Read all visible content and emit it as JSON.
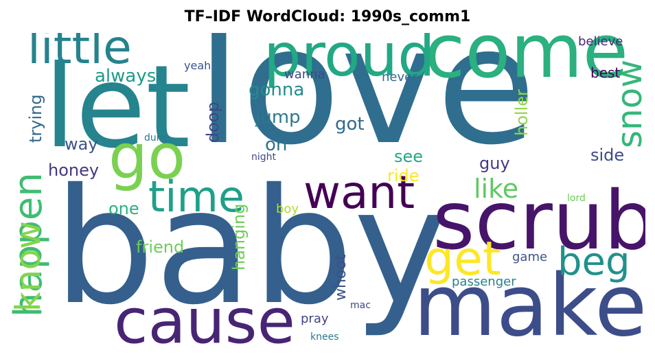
{
  "title": "TF–IDF WordCloud: 1990s_comm1",
  "words": [
    {
      "text": "love",
      "color": "#2f6e8e"
    },
    {
      "text": "baby",
      "color": "#35608d"
    },
    {
      "text": "let",
      "color": "#25848e"
    },
    {
      "text": "make",
      "color": "#3d4d8a"
    },
    {
      "text": "scrub",
      "color": "#46156a"
    },
    {
      "text": "come",
      "color": "#2bb07f"
    },
    {
      "text": "cause",
      "color": "#482475"
    },
    {
      "text": "proud",
      "color": "#22a884"
    },
    {
      "text": "go",
      "color": "#7ad151"
    },
    {
      "text": "little",
      "color": "#25838e"
    },
    {
      "text": "time",
      "color": "#1fa088"
    },
    {
      "text": "want",
      "color": "#440154"
    },
    {
      "text": "get",
      "color": "#fde725"
    },
    {
      "text": "happen",
      "color": "#3fbc73"
    },
    {
      "text": "know",
      "color": "#84d44b"
    },
    {
      "text": "beg",
      "color": "#21918c"
    },
    {
      "text": "snow",
      "color": "#35b779"
    },
    {
      "text": "like",
      "color": "#5ec962"
    },
    {
      "text": "always",
      "color": "#1e9b8a"
    },
    {
      "text": "gonna",
      "color": "#228c8d"
    },
    {
      "text": "trying",
      "color": "#31688e"
    },
    {
      "text": "jump",
      "color": "#2a788e"
    },
    {
      "text": "got",
      "color": "#30698e"
    },
    {
      "text": "doop",
      "color": "#404688"
    },
    {
      "text": "oh",
      "color": "#2d708e"
    },
    {
      "text": "way",
      "color": "#3b528b"
    },
    {
      "text": "honey",
      "color": "#453781"
    },
    {
      "text": "see",
      "color": "#22a785"
    },
    {
      "text": "guy",
      "color": "#443a83"
    },
    {
      "text": "holler",
      "color": "#8fd744"
    },
    {
      "text": "side",
      "color": "#3e4a89"
    },
    {
      "text": "ride",
      "color": "#fde725"
    },
    {
      "text": "one",
      "color": "#2ab07f"
    },
    {
      "text": "hanging",
      "color": "#6ece58"
    },
    {
      "text": "friend",
      "color": "#6ccd5a"
    },
    {
      "text": "whoot",
      "color": "#3c4f8a"
    },
    {
      "text": "passenger",
      "color": "#27808e"
    },
    {
      "text": "game",
      "color": "#3b528b"
    },
    {
      "text": "pray",
      "color": "#414487"
    },
    {
      "text": "mac",
      "color": "#3f4788"
    },
    {
      "text": "knees",
      "color": "#2a788e"
    },
    {
      "text": "boy",
      "color": "#addc30"
    },
    {
      "text": "lord",
      "color": "#6ccd5a"
    },
    {
      "text": "night",
      "color": "#3e4989"
    },
    {
      "text": "dum",
      "color": "#2a788e"
    },
    {
      "text": "yeah",
      "color": "#3b528b"
    },
    {
      "text": "wanna",
      "color": "#3e4989"
    },
    {
      "text": "never",
      "color": "#31688e"
    },
    {
      "text": "best",
      "color": "#440154"
    },
    {
      "text": "believe",
      "color": "#482878"
    }
  ]
}
